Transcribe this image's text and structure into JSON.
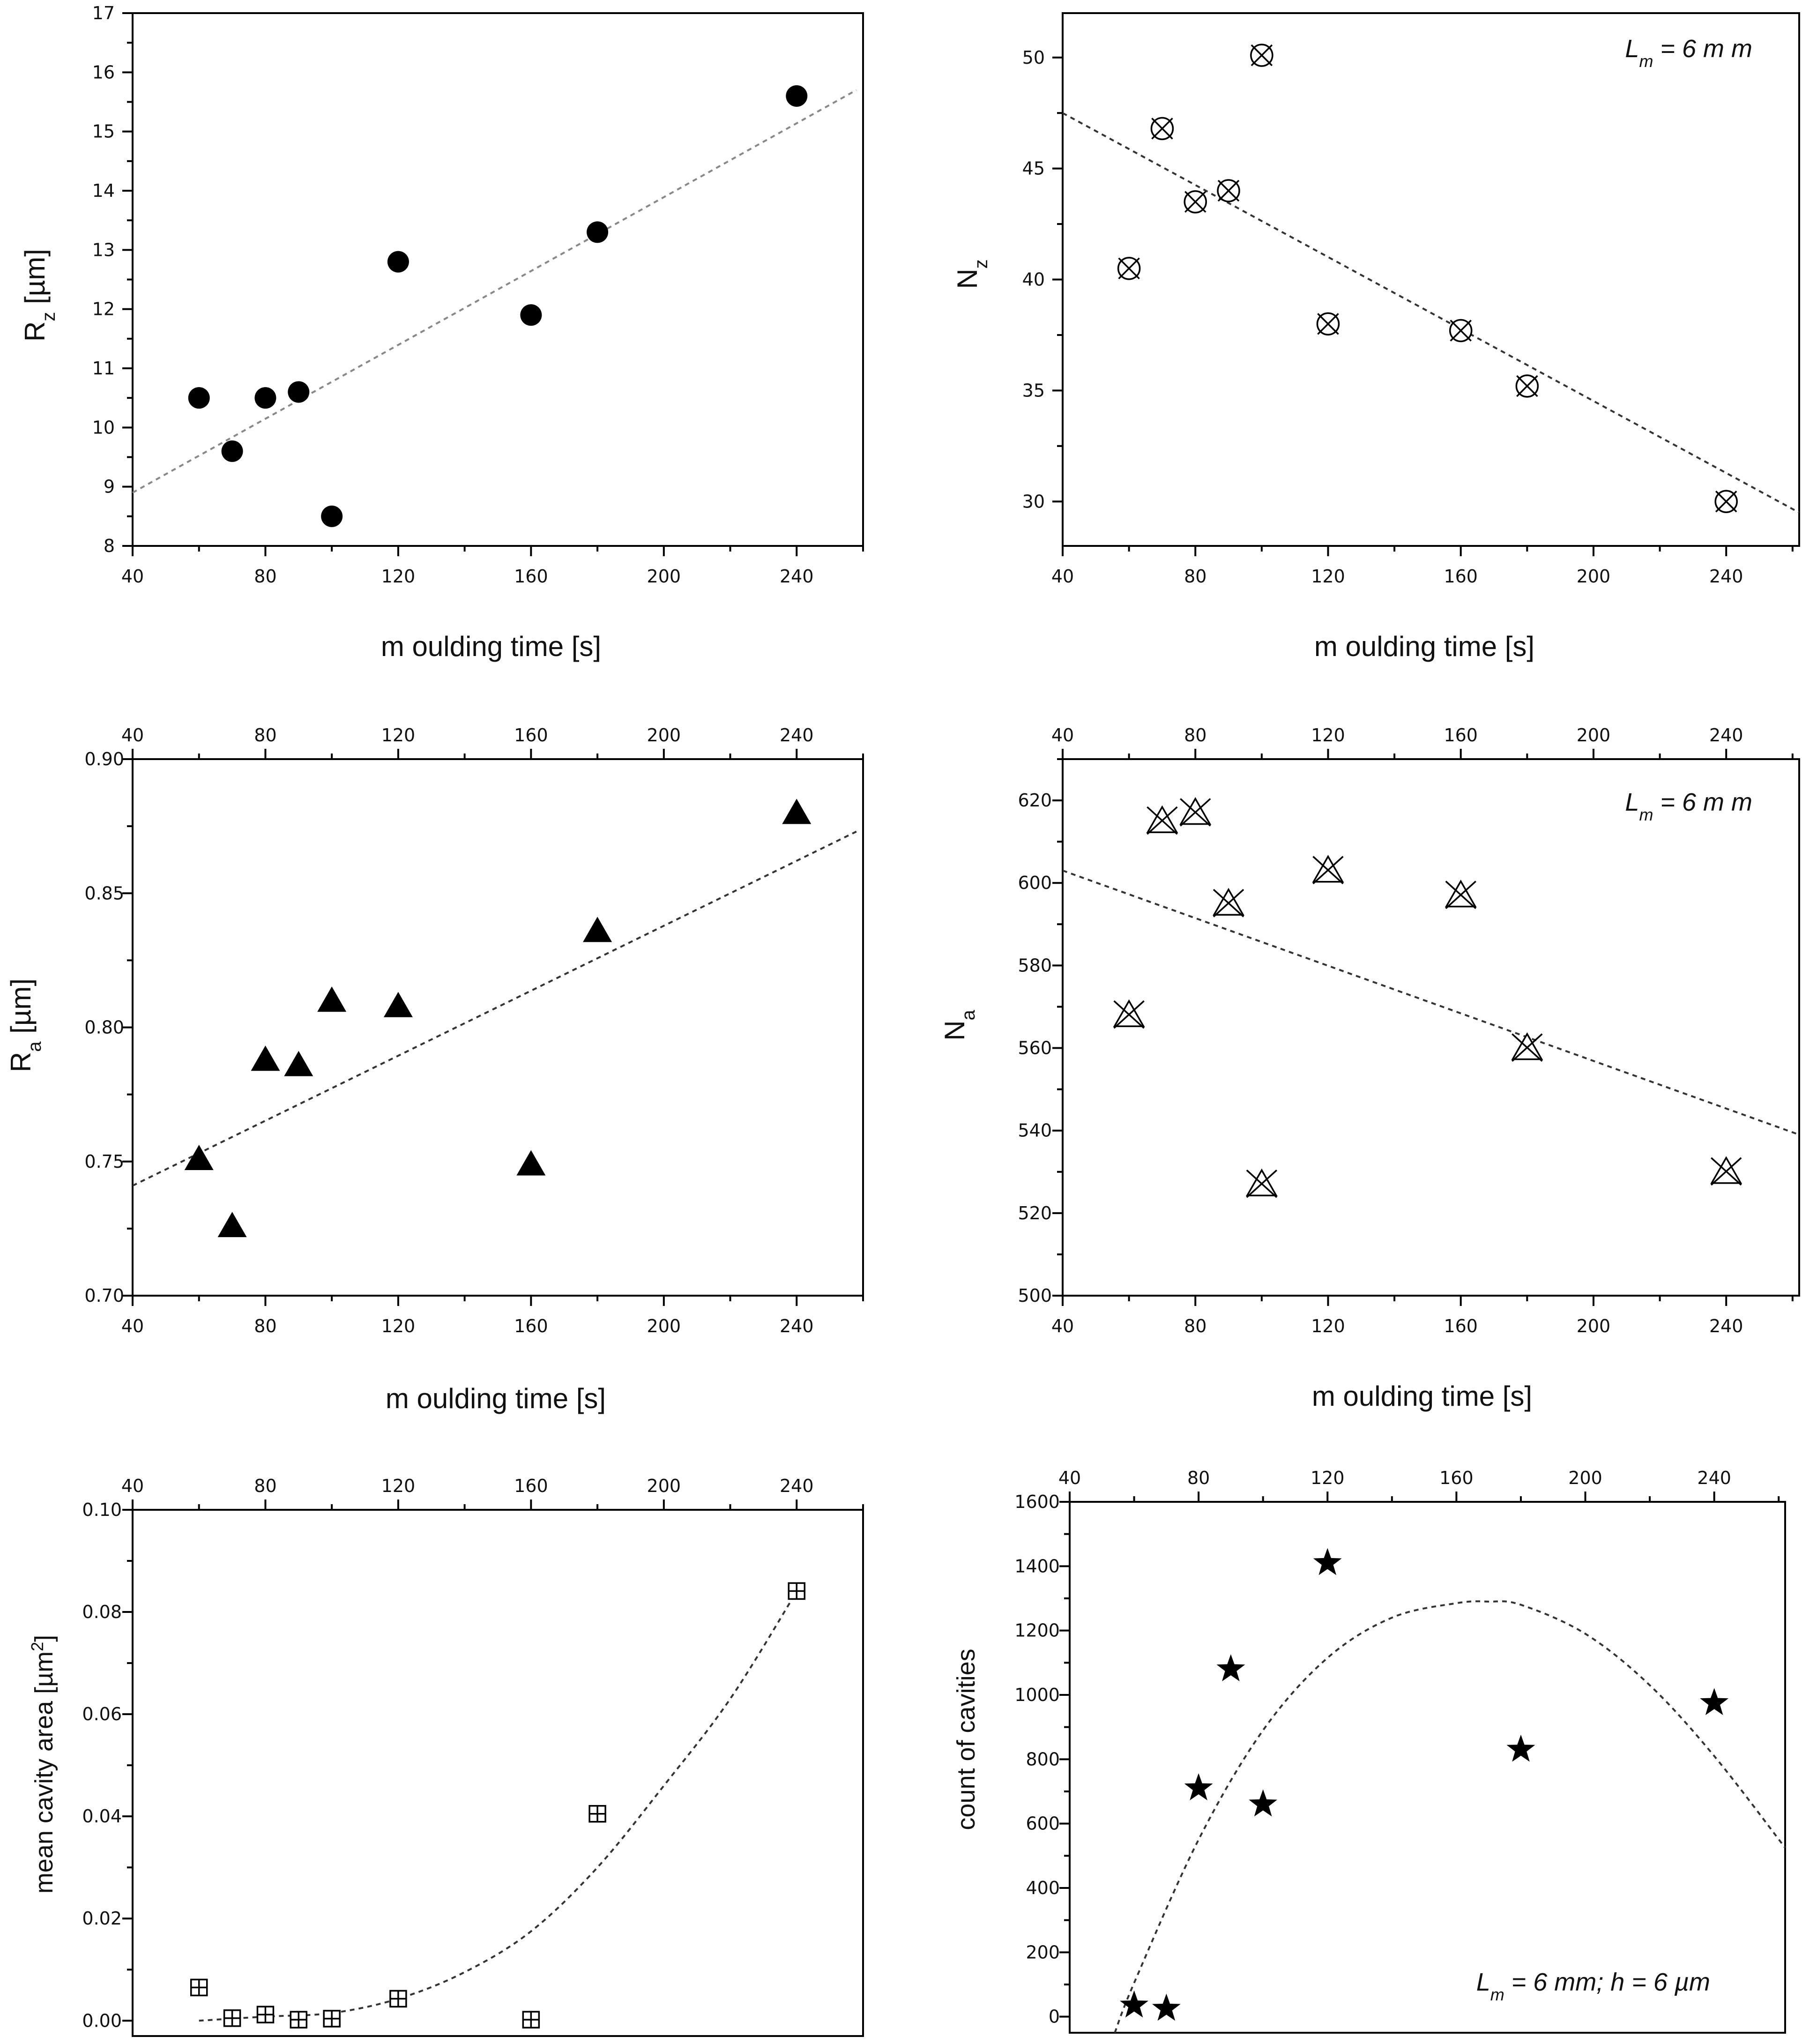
{
  "chart_data": [
    {
      "id": "rz",
      "type": "scatter",
      "title": "",
      "xlabel": "m oulding time [s]",
      "ylabel": "R",
      "ylabel_sub": "z",
      "ylabel_rest": " [µm]",
      "xlim": [
        40,
        260
      ],
      "ylim": [
        8,
        17
      ],
      "x_ticks": [
        40,
        80,
        120,
        160,
        200,
        240
      ],
      "x_tick_labels": [
        "40",
        "80",
        "120",
        "160",
        "200",
        "240"
      ],
      "y_ticks": [
        8,
        9,
        10,
        11,
        12,
        13,
        14,
        15,
        16,
        17
      ],
      "y_tick_labels": [
        "8",
        "9",
        "10",
        "11",
        "12",
        "13",
        "14",
        "15",
        "16",
        "17"
      ],
      "x_axis_position": "bottom",
      "marker": "filled-circle",
      "series": [
        {
          "name": "Rz",
          "x": [
            60,
            70,
            80,
            90,
            100,
            120,
            160,
            180,
            240
          ],
          "y": [
            10.5,
            9.6,
            10.5,
            10.6,
            8.5,
            12.8,
            11.9,
            13.3,
            15.6
          ]
        }
      ],
      "fit": {
        "type": "linear",
        "style": "grey-dashed",
        "x": [
          40,
          258
        ],
        "y": [
          8.9,
          15.7
        ]
      },
      "annotation": ""
    },
    {
      "id": "nz",
      "type": "scatter",
      "title": "",
      "xlabel": "m oulding time [s]",
      "ylabel": "N",
      "ylabel_sub": "z",
      "ylabel_rest": "",
      "xlim": [
        40,
        262
      ],
      "ylim": [
        28,
        52
      ],
      "x_ticks": [
        40,
        80,
        120,
        160,
        200,
        240
      ],
      "x_tick_labels": [
        "40",
        "80",
        "120",
        "160",
        "200",
        "240"
      ],
      "y_ticks": [
        30,
        35,
        40,
        45,
        50
      ],
      "y_tick_labels": [
        "30",
        "35",
        "40",
        "45",
        "50"
      ],
      "x_axis_position": "bottom",
      "marker": "circle-cross",
      "series": [
        {
          "name": "Nz",
          "x": [
            60,
            70,
            80,
            90,
            100,
            120,
            160,
            180,
            240
          ],
          "y": [
            40.5,
            46.8,
            43.5,
            44.0,
            50.1,
            38.0,
            37.7,
            35.2,
            30.0
          ]
        }
      ],
      "fit": {
        "type": "linear",
        "style": "dashed",
        "x": [
          40,
          262
        ],
        "y": [
          47.5,
          29.5
        ]
      },
      "annotation": "L",
      "annotation_sub": "m",
      "annotation_rest": " = 6 m m"
    },
    {
      "id": "ra",
      "type": "scatter",
      "title": "",
      "xlabel": "m oulding time [s]",
      "ylabel": "R",
      "ylabel_sub": "a",
      "ylabel_rest": " [µm]",
      "xlim": [
        40,
        260
      ],
      "ylim": [
        0.7,
        0.9
      ],
      "x_ticks": [
        40,
        80,
        120,
        160,
        200,
        240
      ],
      "x_tick_labels": [
        "40",
        "80",
        "120",
        "160",
        "200",
        "240"
      ],
      "y_ticks": [
        0.7,
        0.75,
        0.8,
        0.85,
        0.9
      ],
      "y_tick_labels": [
        "0.70",
        "0.75",
        "0.80",
        "0.85",
        "0.90"
      ],
      "x_axis_position": "both",
      "marker": "filled-triangle",
      "series": [
        {
          "name": "Ra",
          "x": [
            60,
            70,
            80,
            90,
            100,
            120,
            160,
            180,
            240
          ],
          "y": [
            0.751,
            0.726,
            0.788,
            0.786,
            0.81,
            0.808,
            0.749,
            0.836,
            0.88
          ]
        }
      ],
      "fit": {
        "type": "linear",
        "style": "dashed",
        "x": [
          40,
          258
        ],
        "y": [
          0.741,
          0.873
        ]
      },
      "annotation": ""
    },
    {
      "id": "na",
      "type": "scatter",
      "title": "",
      "xlabel": "m oulding time [s]",
      "ylabel": "N",
      "ylabel_sub": "a",
      "ylabel_rest": "",
      "xlim": [
        40,
        262
      ],
      "ylim": [
        500,
        630
      ],
      "x_ticks": [
        40,
        80,
        120,
        160,
        200,
        240
      ],
      "x_tick_labels": [
        "40",
        "80",
        "120",
        "160",
        "200",
        "240"
      ],
      "y_ticks": [
        500,
        520,
        540,
        560,
        580,
        600,
        620
      ],
      "y_tick_labels": [
        "500",
        "520",
        "540",
        "560",
        "580",
        "600",
        "620"
      ],
      "x_axis_position": "both",
      "marker": "triangle-cross",
      "series": [
        {
          "name": "Na",
          "x": [
            60,
            70,
            80,
            90,
            100,
            120,
            160,
            180,
            240
          ],
          "y": [
            568,
            615,
            617,
            595,
            527,
            603,
            597,
            560,
            530
          ]
        }
      ],
      "fit": {
        "type": "linear",
        "style": "dashed",
        "x": [
          40,
          262
        ],
        "y": [
          603,
          539
        ]
      },
      "annotation": "L",
      "annotation_sub": "m",
      "annotation_rest": " = 6 m m"
    },
    {
      "id": "area",
      "type": "scatter",
      "title": "",
      "xlabel": "",
      "ylabel": "mean cavity area [µm",
      "ylabel_sup": "2",
      "ylabel_rest": "]",
      "xlim": [
        40,
        260
      ],
      "ylim": [
        -0.003,
        0.1
      ],
      "x_ticks": [
        40,
        80,
        120,
        160,
        200,
        240
      ],
      "x_tick_labels": [
        "40",
        "80",
        "120",
        "160",
        "200",
        "240"
      ],
      "y_ticks": [
        0.0,
        0.02,
        0.04,
        0.06,
        0.08,
        0.1
      ],
      "y_tick_labels": [
        "0.00",
        "0.02",
        "0.04",
        "0.06",
        "0.08",
        "0.10"
      ],
      "x_axis_position": "top",
      "marker": "square-plus",
      "series": [
        {
          "name": "mean cavity area",
          "x": [
            60,
            70,
            80,
            90,
            100,
            120,
            160,
            180,
            240
          ],
          "y": [
            0.0065,
            0.0005,
            0.0012,
            0.0002,
            0.0004,
            0.0043,
            0.0002,
            0.0405,
            0.0841
          ]
        }
      ],
      "fit": {
        "type": "polynomial",
        "style": "dashed",
        "x": [
          60,
          80,
          100,
          120,
          140,
          160,
          180,
          200,
          220,
          240
        ],
        "y": [
          0.0,
          0.0008,
          0.0015,
          0.0043,
          0.0095,
          0.0175,
          0.03,
          0.046,
          0.063,
          0.084
        ]
      },
      "annotation": ""
    },
    {
      "id": "count",
      "type": "scatter",
      "title": "",
      "xlabel": "",
      "ylabel": "count of cavities",
      "xlim": [
        40,
        262
      ],
      "ylim": [
        -50,
        1600
      ],
      "x_ticks": [
        40,
        80,
        120,
        160,
        200,
        240
      ],
      "x_tick_labels": [
        "40",
        "80",
        "120",
        "160",
        "200",
        "240"
      ],
      "y_ticks": [
        0,
        200,
        400,
        600,
        800,
        1000,
        1200,
        1400,
        1600
      ],
      "y_tick_labels": [
        "0",
        "200",
        "400",
        "600",
        "800",
        "1000",
        "1200",
        "1400",
        "1600"
      ],
      "x_axis_position": "top",
      "marker": "filled-star",
      "series": [
        {
          "name": "count of cavities",
          "x": [
            60,
            70,
            80,
            90,
            100,
            120,
            180,
            240
          ],
          "y": [
            35,
            25,
            710,
            1080,
            660,
            1410,
            830,
            975
          ]
        }
      ],
      "fit": {
        "type": "polynomial",
        "style": "dashed",
        "x": [
          54,
          60,
          80,
          100,
          120,
          140,
          160,
          170,
          180,
          200,
          220,
          240,
          262
        ],
        "y": [
          -50,
          105,
          550,
          890,
          1115,
          1240,
          1285,
          1290,
          1280,
          1190,
          1030,
          810,
          525
        ]
      },
      "annotation": "L",
      "annotation_sub": "m",
      "annotation_rest": " = 6 mm;  h = 6 µm"
    }
  ]
}
